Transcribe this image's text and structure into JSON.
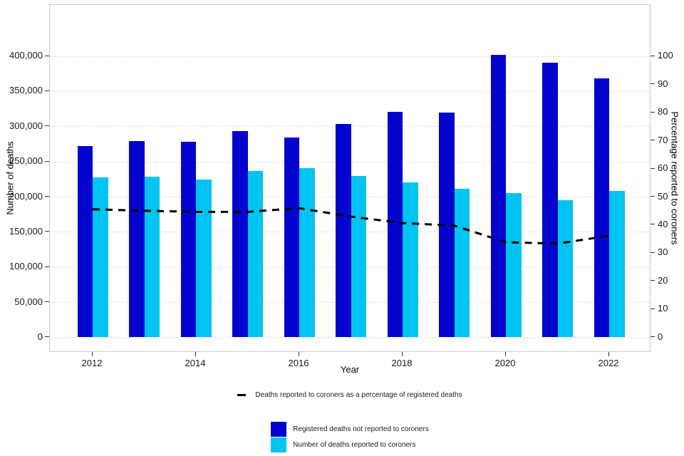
{
  "chart_data": {
    "type": "bar",
    "subtype": "grouped-bars-with-dashed-line",
    "categories": [
      2012,
      2013,
      2014,
      2015,
      2016,
      2017,
      2018,
      2019,
      2020,
      2021,
      2022
    ],
    "series": [
      {
        "name": "Registered deaths not reported to coroners",
        "type": "bar",
        "axis": "left",
        "color": "#0404cf",
        "values": [
          272000,
          279000,
          278000,
          293000,
          284000,
          303000,
          321000,
          320000,
          402000,
          390000,
          368000
        ]
      },
      {
        "name": "Number of deaths reported to coroners",
        "type": "bar",
        "axis": "left",
        "color": "#00c4f0",
        "values": [
          227000,
          228000,
          224000,
          236000,
          241000,
          229000,
          220000,
          211000,
          205000,
          195000,
          208000
        ]
      },
      {
        "name": "Deaths reported to coroners as a percentage of registered deaths",
        "type": "line",
        "axis": "right",
        "color": "#000000",
        "dashed": true,
        "values": [
          45.5,
          45.0,
          44.6,
          44.6,
          45.9,
          42.9,
          40.6,
          39.7,
          33.8,
          33.3,
          36.1
        ]
      }
    ],
    "xlabel": "Year",
    "ylabel_left": "Number of deaths",
    "ylabel_right": "Percentage reported to coroners",
    "ylim_left": [
      0,
      400000
    ],
    "ylim_right": [
      0,
      100
    ],
    "left_tick_labels": [
      "0",
      "50,000",
      "100,000",
      "150,000",
      "200,000",
      "250,000",
      "300,000",
      "350,000",
      "400,000"
    ],
    "right_tick_labels": [
      "0",
      "10",
      "20",
      "30",
      "40",
      "50",
      "60",
      "70",
      "80",
      "90",
      "100"
    ],
    "x_tick_labels": [
      "2012",
      "2014",
      "2016",
      "2018",
      "2020",
      "2022"
    ],
    "grid": "horizontal-dashed",
    "legend_position": "bottom"
  }
}
